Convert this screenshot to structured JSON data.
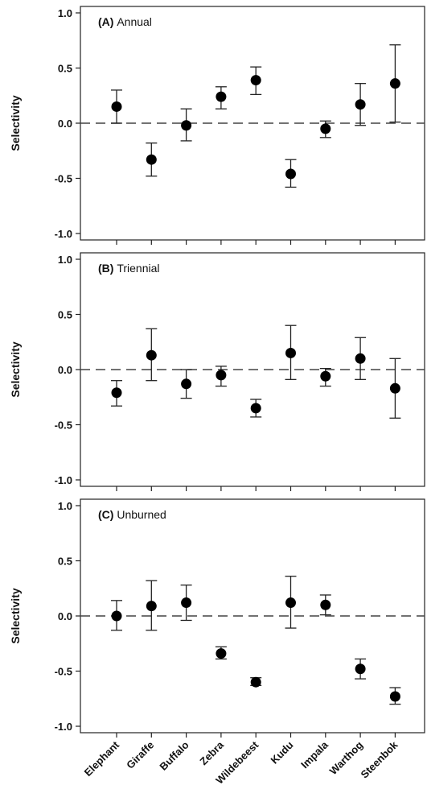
{
  "chart_data": [
    {
      "type": "scatter",
      "panel_letter": "(A)",
      "panel_name": "Annual",
      "ylabel": "Selectivity",
      "xlabel": "",
      "ylim": [
        -1.0,
        1.0
      ],
      "yticks": [
        "-1.0",
        "-0.5",
        "0.0",
        "0.5",
        "1.0"
      ],
      "reference_line": 0,
      "categories": [
        "Elephant",
        "Giraffe",
        "Buffalo",
        "Zebra",
        "Wildebeest",
        "Kudu",
        "Impala",
        "Warthog",
        "Steenbok"
      ],
      "values": [
        0.15,
        -0.33,
        -0.02,
        0.24,
        0.39,
        -0.46,
        -0.05,
        0.17,
        0.36
      ],
      "err_low": [
        0.0,
        -0.48,
        -0.16,
        0.13,
        0.26,
        -0.58,
        -0.13,
        -0.02,
        0.01
      ],
      "err_high": [
        0.3,
        -0.18,
        0.13,
        0.33,
        0.51,
        -0.33,
        0.02,
        0.36,
        0.71
      ]
    },
    {
      "type": "scatter",
      "panel_letter": "(B)",
      "panel_name": "Triennial",
      "ylabel": "Selectivity",
      "xlabel": "",
      "ylim": [
        -1.0,
        1.0
      ],
      "yticks": [
        "-1.0",
        "-0.5",
        "0.0",
        "0.5",
        "1.0"
      ],
      "reference_line": 0,
      "categories": [
        "Elephant",
        "Giraffe",
        "Buffalo",
        "Zebra",
        "Wildebeest",
        "Kudu",
        "Impala",
        "Warthog",
        "Steenbok"
      ],
      "values": [
        -0.21,
        0.13,
        -0.13,
        -0.05,
        -0.35,
        0.15,
        -0.06,
        0.1,
        -0.17
      ],
      "err_low": [
        -0.33,
        -0.1,
        -0.26,
        -0.15,
        -0.43,
        -0.09,
        -0.15,
        -0.09,
        -0.44
      ],
      "err_high": [
        -0.1,
        0.37,
        0.0,
        0.03,
        -0.27,
        0.4,
        0.01,
        0.29,
        0.1
      ]
    },
    {
      "type": "scatter",
      "panel_letter": "(C)",
      "panel_name": "Unburned",
      "ylabel": "Selectivity",
      "xlabel": "",
      "ylim": [
        -1.0,
        1.0
      ],
      "yticks": [
        "-1.0",
        "-0.5",
        "0.0",
        "0.5",
        "1.0"
      ],
      "reference_line": 0,
      "categories": [
        "Elephant",
        "Giraffe",
        "Buffalo",
        "Zebra",
        "Wildebeest",
        "Kudu",
        "Impala",
        "Warthog",
        "Steenbok"
      ],
      "values": [
        0.0,
        0.09,
        0.12,
        -0.34,
        -0.6,
        0.12,
        0.1,
        -0.48,
        -0.73
      ],
      "err_low": [
        -0.13,
        -0.13,
        -0.04,
        -0.39,
        -0.63,
        -0.11,
        0.01,
        -0.57,
        -0.8
      ],
      "err_high": [
        0.14,
        0.32,
        0.28,
        -0.28,
        -0.56,
        0.36,
        0.19,
        -0.39,
        -0.65
      ]
    }
  ]
}
